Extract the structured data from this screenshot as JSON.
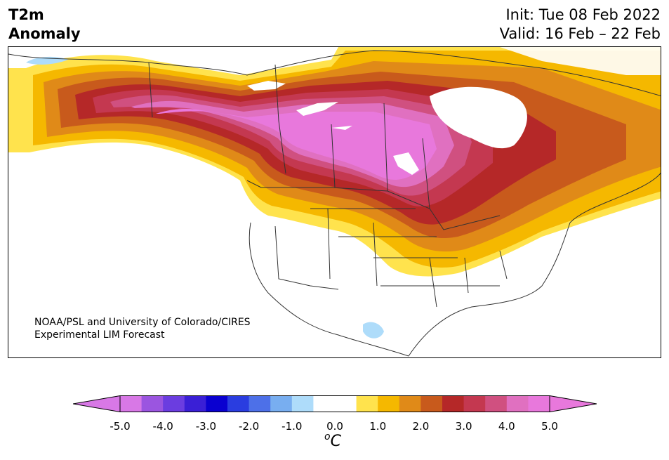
{
  "header": {
    "title_line1": "T2m",
    "title_line2": "Anomaly",
    "init": "Init: Tue 08 Feb 2022",
    "valid": "Valid: 16 Feb – 22 Feb"
  },
  "credit": {
    "line1": "NOAA/PSL and University of Colorado/CIRES",
    "line2": "Experimental LIM Forecast"
  },
  "colorbar": {
    "unit_base": "C",
    "unit_sup": "o",
    "ticks": [
      "-5.0",
      "-4.0",
      "-3.0",
      "-2.0",
      "-1.0",
      "0.0",
      "1.0",
      "2.0",
      "3.0",
      "4.0",
      "5.0"
    ],
    "below_color": "#d878e6",
    "above_color": "#e878dc",
    "colors": [
      "#d878e6",
      "#9b55e0",
      "#6b3de0",
      "#3a1fd6",
      "#0a00d0",
      "#2a3de0",
      "#4d70e8",
      "#78aef0",
      "#aedcfa",
      "#ffffff",
      "#ffffff",
      "#ffe34d",
      "#f5b800",
      "#e08a18",
      "#c85a1c",
      "#b52828",
      "#c43850",
      "#d05080",
      "#e070c0",
      "#e878dc"
    ]
  },
  "map": {
    "land_color": "#ffffff",
    "ocean_color": "#ffffff",
    "border_color": "#333333"
  }
}
